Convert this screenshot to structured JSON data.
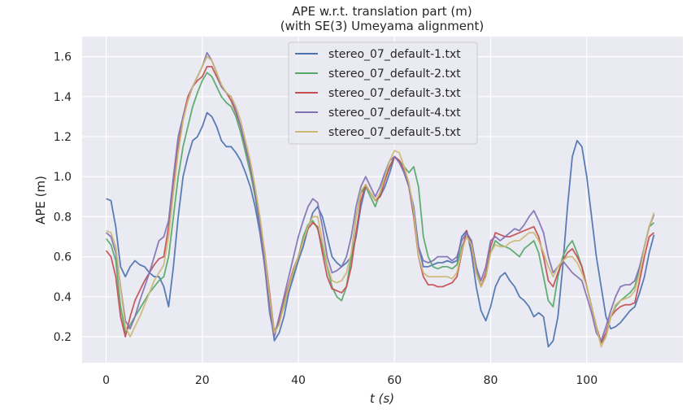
{
  "chart_data": {
    "type": "line",
    "title": "APE w.r.t. translation part (m)",
    "subtitle": "(with SE(3) Umeyama alignment)",
    "xlabel": "t (s)",
    "ylabel": "APE (m)",
    "xlim": [
      -5,
      120
    ],
    "ylim": [
      0.07,
      1.7
    ],
    "xticks": [
      0,
      20,
      40,
      60,
      80,
      100
    ],
    "yticks": [
      0.2,
      0.4,
      0.6,
      0.8,
      1.0,
      1.2,
      1.4,
      1.6
    ],
    "ytick_labels": [
      "0.2",
      "0.4",
      "0.6",
      "0.8",
      "1.0",
      "1.2",
      "1.4",
      "1.6"
    ],
    "grid": true,
    "legend_position": "top-center",
    "series": [
      {
        "name": "stereo_07_default-1.txt",
        "color": "#4c72b0",
        "x": [
          0,
          1,
          2,
          3,
          4,
          5,
          6,
          7,
          8,
          9,
          10,
          11,
          12,
          13,
          14,
          15,
          16,
          17,
          18,
          19,
          20,
          21,
          22,
          23,
          24,
          25,
          26,
          27,
          28,
          29,
          30,
          31,
          32,
          33,
          34,
          35,
          36,
          37,
          38,
          39,
          40,
          41,
          42,
          43,
          44,
          45,
          46,
          47,
          48,
          49,
          50,
          51,
          52,
          53,
          54,
          55,
          56,
          57,
          58,
          59,
          60,
          61,
          62,
          63,
          64,
          65,
          66,
          67,
          68,
          69,
          70,
          71,
          72,
          73,
          74,
          75,
          76,
          77,
          78,
          79,
          80,
          81,
          82,
          83,
          84,
          85,
          86,
          87,
          88,
          89,
          90,
          91,
          92,
          93,
          94,
          95,
          96,
          97,
          98,
          99,
          100,
          101,
          102,
          103,
          104,
          105,
          106,
          107,
          108,
          109,
          110,
          111,
          112,
          113,
          114
        ],
        "y": [
          0.89,
          0.88,
          0.75,
          0.55,
          0.5,
          0.55,
          0.58,
          0.56,
          0.55,
          0.52,
          0.5,
          0.5,
          0.45,
          0.35,
          0.55,
          0.8,
          1.0,
          1.1,
          1.18,
          1.2,
          1.25,
          1.32,
          1.3,
          1.25,
          1.18,
          1.15,
          1.15,
          1.12,
          1.08,
          1.02,
          0.95,
          0.85,
          0.72,
          0.55,
          0.35,
          0.18,
          0.22,
          0.3,
          0.42,
          0.5,
          0.58,
          0.65,
          0.74,
          0.82,
          0.85,
          0.8,
          0.7,
          0.6,
          0.57,
          0.55,
          0.57,
          0.6,
          0.7,
          0.85,
          0.95,
          0.92,
          0.88,
          0.9,
          0.95,
          1.02,
          1.1,
          1.08,
          1.02,
          0.95,
          0.85,
          0.65,
          0.55,
          0.55,
          0.56,
          0.57,
          0.57,
          0.58,
          0.57,
          0.58,
          0.7,
          0.73,
          0.62,
          0.45,
          0.33,
          0.28,
          0.35,
          0.45,
          0.5,
          0.52,
          0.48,
          0.45,
          0.4,
          0.38,
          0.35,
          0.3,
          0.32,
          0.3,
          0.15,
          0.18,
          0.3,
          0.55,
          0.85,
          1.1,
          1.18,
          1.15,
          1.0,
          0.8,
          0.6,
          0.45,
          0.3,
          0.24,
          0.25,
          0.27,
          0.3,
          0.33,
          0.35,
          0.42,
          0.5,
          0.62,
          0.71
        ]
      },
      {
        "name": "stereo_07_default-2.txt",
        "color": "#55a868",
        "x": [
          0,
          1,
          2,
          3,
          4,
          5,
          6,
          7,
          8,
          9,
          10,
          11,
          12,
          13,
          14,
          15,
          16,
          17,
          18,
          19,
          20,
          21,
          22,
          23,
          24,
          25,
          26,
          27,
          28,
          29,
          30,
          31,
          32,
          33,
          34,
          35,
          36,
          37,
          38,
          39,
          40,
          41,
          42,
          43,
          44,
          45,
          46,
          47,
          48,
          49,
          50,
          51,
          52,
          53,
          54,
          55,
          56,
          57,
          58,
          59,
          60,
          61,
          62,
          63,
          64,
          65,
          66,
          67,
          68,
          69,
          70,
          71,
          72,
          73,
          74,
          75,
          76,
          77,
          78,
          79,
          80,
          81,
          82,
          83,
          84,
          85,
          86,
          87,
          88,
          89,
          90,
          91,
          92,
          93,
          94,
          95,
          96,
          97,
          98,
          99,
          100,
          101,
          102,
          103,
          104,
          105,
          106,
          107,
          108,
          109,
          110,
          111,
          112,
          113,
          114
        ],
        "y": [
          0.69,
          0.66,
          0.58,
          0.35,
          0.22,
          0.26,
          0.3,
          0.34,
          0.38,
          0.42,
          0.45,
          0.48,
          0.5,
          0.6,
          0.8,
          1.0,
          1.15,
          1.25,
          1.35,
          1.42,
          1.48,
          1.52,
          1.5,
          1.45,
          1.4,
          1.37,
          1.35,
          1.3,
          1.22,
          1.12,
          1.02,
          0.9,
          0.75,
          0.6,
          0.4,
          0.22,
          0.28,
          0.35,
          0.45,
          0.52,
          0.6,
          0.7,
          0.76,
          0.78,
          0.74,
          0.65,
          0.55,
          0.45,
          0.4,
          0.38,
          0.45,
          0.6,
          0.8,
          0.92,
          0.95,
          0.9,
          0.85,
          0.92,
          1.0,
          1.05,
          1.1,
          1.08,
          1.05,
          1.02,
          1.05,
          0.95,
          0.7,
          0.6,
          0.55,
          0.54,
          0.55,
          0.55,
          0.54,
          0.56,
          0.65,
          0.7,
          0.68,
          0.55,
          0.45,
          0.5,
          0.62,
          0.68,
          0.66,
          0.65,
          0.64,
          0.62,
          0.6,
          0.64,
          0.66,
          0.68,
          0.62,
          0.5,
          0.38,
          0.35,
          0.5,
          0.6,
          0.65,
          0.68,
          0.62,
          0.55,
          0.45,
          0.35,
          0.25,
          0.17,
          0.2,
          0.3,
          0.35,
          0.38,
          0.4,
          0.42,
          0.45,
          0.55,
          0.65,
          0.75,
          0.77
        ]
      },
      {
        "name": "stereo_07_default-3.txt",
        "color": "#c44e52",
        "x": [
          0,
          1,
          2,
          3,
          4,
          5,
          6,
          7,
          8,
          9,
          10,
          11,
          12,
          13,
          14,
          15,
          16,
          17,
          18,
          19,
          20,
          21,
          22,
          23,
          24,
          25,
          26,
          27,
          28,
          29,
          30,
          31,
          32,
          33,
          34,
          35,
          36,
          37,
          38,
          39,
          40,
          41,
          42,
          43,
          44,
          45,
          46,
          47,
          48,
          49,
          50,
          51,
          52,
          53,
          54,
          55,
          56,
          57,
          58,
          59,
          60,
          61,
          62,
          63,
          64,
          65,
          66,
          67,
          68,
          69,
          70,
          71,
          72,
          73,
          74,
          75,
          76,
          77,
          78,
          79,
          80,
          81,
          82,
          83,
          84,
          85,
          86,
          87,
          88,
          89,
          90,
          91,
          92,
          93,
          94,
          95,
          96,
          97,
          98,
          99,
          100,
          101,
          102,
          103,
          104,
          105,
          106,
          107,
          108,
          109,
          110,
          111,
          112,
          113,
          114
        ],
        "y": [
          0.63,
          0.6,
          0.5,
          0.3,
          0.2,
          0.3,
          0.38,
          0.43,
          0.48,
          0.52,
          0.56,
          0.59,
          0.6,
          0.75,
          0.95,
          1.15,
          1.3,
          1.4,
          1.45,
          1.48,
          1.5,
          1.55,
          1.55,
          1.5,
          1.45,
          1.42,
          1.38,
          1.32,
          1.25,
          1.15,
          1.05,
          0.92,
          0.78,
          0.62,
          0.42,
          0.22,
          0.28,
          0.38,
          0.46,
          0.54,
          0.6,
          0.68,
          0.74,
          0.77,
          0.75,
          0.62,
          0.5,
          0.44,
          0.43,
          0.42,
          0.45,
          0.55,
          0.72,
          0.88,
          0.96,
          0.92,
          0.88,
          0.9,
          0.98,
          1.05,
          1.1,
          1.08,
          1.03,
          0.95,
          0.8,
          0.6,
          0.5,
          0.46,
          0.46,
          0.45,
          0.45,
          0.46,
          0.47,
          0.5,
          0.62,
          0.73,
          0.65,
          0.52,
          0.45,
          0.52,
          0.65,
          0.72,
          0.71,
          0.7,
          0.7,
          0.71,
          0.72,
          0.73,
          0.74,
          0.75,
          0.7,
          0.6,
          0.48,
          0.45,
          0.52,
          0.58,
          0.62,
          0.64,
          0.6,
          0.55,
          0.45,
          0.35,
          0.25,
          0.17,
          0.22,
          0.3,
          0.33,
          0.35,
          0.36,
          0.36,
          0.37,
          0.48,
          0.6,
          0.7,
          0.72
        ]
      },
      {
        "name": "stereo_07_default-4.txt",
        "color": "#8172b3",
        "x": [
          0,
          1,
          2,
          3,
          4,
          5,
          6,
          7,
          8,
          9,
          10,
          11,
          12,
          13,
          14,
          15,
          16,
          17,
          18,
          19,
          20,
          21,
          22,
          23,
          24,
          25,
          26,
          27,
          28,
          29,
          30,
          31,
          32,
          33,
          34,
          35,
          36,
          37,
          38,
          39,
          40,
          41,
          42,
          43,
          44,
          45,
          46,
          47,
          48,
          49,
          50,
          51,
          52,
          53,
          54,
          55,
          56,
          57,
          58,
          59,
          60,
          61,
          62,
          63,
          64,
          65,
          66,
          67,
          68,
          69,
          70,
          71,
          72,
          73,
          74,
          75,
          76,
          77,
          78,
          79,
          80,
          81,
          82,
          83,
          84,
          85,
          86,
          87,
          88,
          89,
          90,
          91,
          92,
          93,
          94,
          95,
          96,
          97,
          98,
          99,
          100,
          101,
          102,
          103,
          104,
          105,
          106,
          107,
          108,
          109,
          110,
          111,
          112,
          113,
          114
        ],
        "y": [
          0.72,
          0.7,
          0.62,
          0.45,
          0.28,
          0.24,
          0.3,
          0.38,
          0.45,
          0.52,
          0.6,
          0.68,
          0.7,
          0.78,
          1.0,
          1.2,
          1.3,
          1.38,
          1.45,
          1.5,
          1.55,
          1.62,
          1.58,
          1.52,
          1.45,
          1.42,
          1.4,
          1.33,
          1.25,
          1.15,
          1.05,
          0.92,
          0.75,
          0.55,
          0.32,
          0.2,
          0.3,
          0.4,
          0.5,
          0.6,
          0.7,
          0.78,
          0.85,
          0.89,
          0.87,
          0.75,
          0.6,
          0.52,
          0.53,
          0.55,
          0.6,
          0.7,
          0.85,
          0.95,
          1.0,
          0.95,
          0.9,
          0.95,
          1.02,
          1.08,
          1.1,
          1.07,
          1.02,
          0.95,
          0.82,
          0.65,
          0.58,
          0.57,
          0.58,
          0.6,
          0.6,
          0.6,
          0.58,
          0.6,
          0.68,
          0.72,
          0.68,
          0.55,
          0.48,
          0.55,
          0.68,
          0.7,
          0.68,
          0.7,
          0.72,
          0.74,
          0.73,
          0.76,
          0.8,
          0.83,
          0.78,
          0.72,
          0.6,
          0.52,
          0.55,
          0.58,
          0.55,
          0.52,
          0.5,
          0.48,
          0.4,
          0.32,
          0.22,
          0.18,
          0.25,
          0.33,
          0.4,
          0.45,
          0.46,
          0.46,
          0.48,
          0.55,
          0.65,
          0.75,
          0.81
        ]
      },
      {
        "name": "stereo_07_default-5.txt",
        "color": "#ccb974",
        "x": [
          0,
          1,
          2,
          3,
          4,
          5,
          6,
          7,
          8,
          9,
          10,
          11,
          12,
          13,
          14,
          15,
          16,
          17,
          18,
          19,
          20,
          21,
          22,
          23,
          24,
          25,
          26,
          27,
          28,
          29,
          30,
          31,
          32,
          33,
          34,
          35,
          36,
          37,
          38,
          39,
          40,
          41,
          42,
          43,
          44,
          45,
          46,
          47,
          48,
          49,
          50,
          51,
          52,
          53,
          54,
          55,
          56,
          57,
          58,
          59,
          60,
          61,
          62,
          63,
          64,
          65,
          66,
          67,
          68,
          69,
          70,
          71,
          72,
          73,
          74,
          75,
          76,
          77,
          78,
          79,
          80,
          81,
          82,
          83,
          84,
          85,
          86,
          87,
          88,
          89,
          90,
          91,
          92,
          93,
          94,
          95,
          96,
          97,
          98,
          99,
          100,
          101,
          102,
          103,
          104,
          105,
          106,
          107,
          108,
          109,
          110,
          111,
          112,
          113,
          114
        ],
        "y": [
          0.73,
          0.72,
          0.65,
          0.45,
          0.25,
          0.2,
          0.25,
          0.3,
          0.36,
          0.42,
          0.48,
          0.52,
          0.56,
          0.7,
          0.92,
          1.12,
          1.28,
          1.38,
          1.45,
          1.5,
          1.55,
          1.6,
          1.58,
          1.52,
          1.46,
          1.42,
          1.4,
          1.35,
          1.28,
          1.18,
          1.08,
          0.95,
          0.8,
          0.62,
          0.4,
          0.22,
          0.26,
          0.36,
          0.45,
          0.53,
          0.6,
          0.68,
          0.75,
          0.8,
          0.8,
          0.68,
          0.56,
          0.48,
          0.47,
          0.48,
          0.52,
          0.62,
          0.8,
          0.93,
          0.96,
          0.92,
          0.88,
          0.92,
          1.0,
          1.08,
          1.13,
          1.12,
          1.05,
          0.97,
          0.83,
          0.6,
          0.52,
          0.5,
          0.5,
          0.5,
          0.5,
          0.5,
          0.49,
          0.52,
          0.63,
          0.7,
          0.66,
          0.52,
          0.45,
          0.5,
          0.62,
          0.66,
          0.65,
          0.65,
          0.67,
          0.68,
          0.68,
          0.7,
          0.72,
          0.72,
          0.68,
          0.62,
          0.55,
          0.5,
          0.55,
          0.58,
          0.6,
          0.6,
          0.57,
          0.52,
          0.45,
          0.35,
          0.25,
          0.15,
          0.2,
          0.3,
          0.36,
          0.38,
          0.39,
          0.4,
          0.43,
          0.52,
          0.65,
          0.75,
          0.82
        ]
      }
    ]
  }
}
